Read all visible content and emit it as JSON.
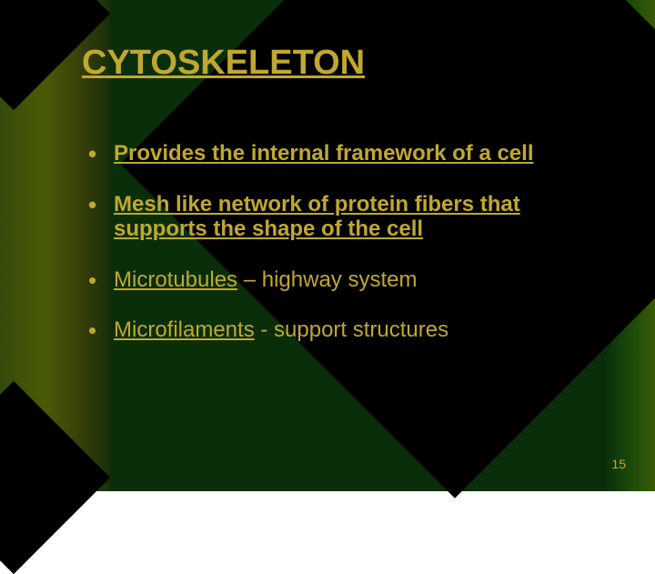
{
  "slide": {
    "title": "CYTOSKELETON",
    "bullets": [
      {
        "text": "Provides the internal framework of a cell",
        "bold": true,
        "underlinePart": null,
        "restPart": null
      },
      {
        "text": "Mesh like network of protein fibers that supports the shape of the cell",
        "bold": true,
        "underlinePart": null,
        "restPart": null
      },
      {
        "text": null,
        "bold": false,
        "underlinePart": "Microtubules",
        "restPart": " – highway system"
      },
      {
        "text": null,
        "bold": false,
        "underlinePart": "Microfilaments",
        "restPart": " -  support structures"
      }
    ],
    "pageNumber": "15"
  },
  "style": {
    "title_color": "#c0a830",
    "title_fontsize": 38,
    "bullet_fontsize": 24,
    "text_color": "#c0a830",
    "background_dark": "#0a2e0a",
    "diamond_color": "#000000",
    "gradient_left_colors": [
      "#354a0a",
      "#4a5a08",
      "#3a4208",
      "#1a2e0a"
    ],
    "gradient_right_colors": [
      "#0a2e0a",
      "#1a4a08",
      "#3a5a08"
    ],
    "page_number_fontsize": 14
  }
}
